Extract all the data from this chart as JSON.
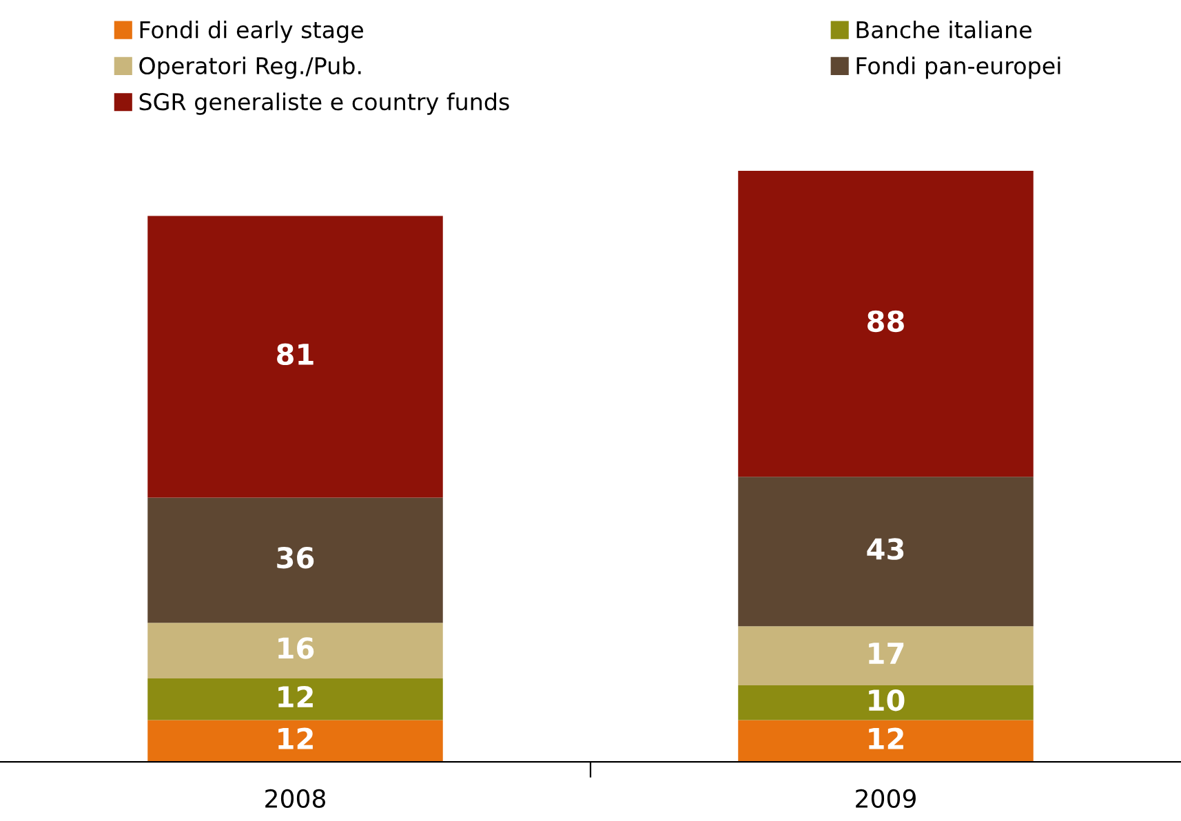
{
  "chart_data": {
    "type": "bar",
    "stacked": true,
    "data_labels": true,
    "legend": "top",
    "grid": false,
    "categories": [
      "2008",
      "2009"
    ],
    "series": [
      {
        "name": "Fondi di early stage",
        "color": "#e8720f",
        "values": [
          12,
          12
        ]
      },
      {
        "name": "Banche italiane",
        "color": "#8c8c12",
        "values": [
          12,
          10
        ]
      },
      {
        "name": "Operatori Reg./Pub.",
        "color": "#c9b67c",
        "values": [
          16,
          17
        ]
      },
      {
        "name": "Fondi pan-europei",
        "color": "#5e4732",
        "values": [
          36,
          43
        ]
      },
      {
        "name": "SGR generaliste e country funds",
        "color": "#8e1208",
        "values": [
          81,
          88
        ]
      }
    ]
  }
}
